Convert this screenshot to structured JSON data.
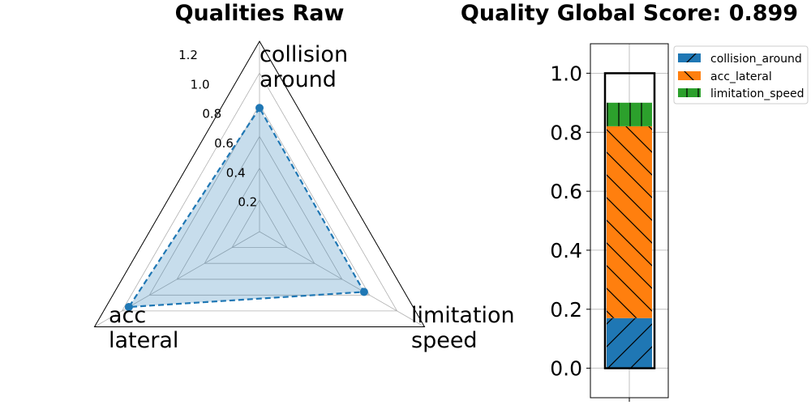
{
  "chart_data": [
    {
      "type": "radar",
      "title": "Qualities Raw",
      "axes": [
        {
          "label_lines": [
            "collision",
            "around"
          ],
          "value": 0.78
        },
        {
          "label_lines": [
            "acc",
            "lateral"
          ],
          "value": 0.95
        },
        {
          "label_lines": [
            "limitation",
            "speed"
          ],
          "value": 0.76
        }
      ],
      "rlim": [
        0,
        1.2
      ],
      "rticks": [
        "0.2",
        "0.4",
        "0.6",
        "0.8",
        "1.0",
        "1.2"
      ],
      "grid": true,
      "color": "#1f77b4"
    },
    {
      "type": "bar",
      "subtype": "stacked",
      "title": "Quality Global Score: 0.899",
      "total": 0.899,
      "series": [
        {
          "name": "collision_around",
          "value": 0.17,
          "color": "#1f77b4",
          "hatch": "/"
        },
        {
          "name": "acc_lateral",
          "value": 0.65,
          "color": "#ff7f0e",
          "hatch": "\\"
        },
        {
          "name": "limitation_speed",
          "value": 0.08,
          "color": "#2ca02c",
          "hatch": "|"
        }
      ],
      "outline_value": 1.0,
      "ylim": [
        -0.1,
        1.1
      ],
      "yticks": [
        "0.0",
        "0.2",
        "0.4",
        "0.6",
        "0.8",
        "1.0"
      ],
      "grid": true,
      "legend_position": "upper-right-outside"
    }
  ]
}
